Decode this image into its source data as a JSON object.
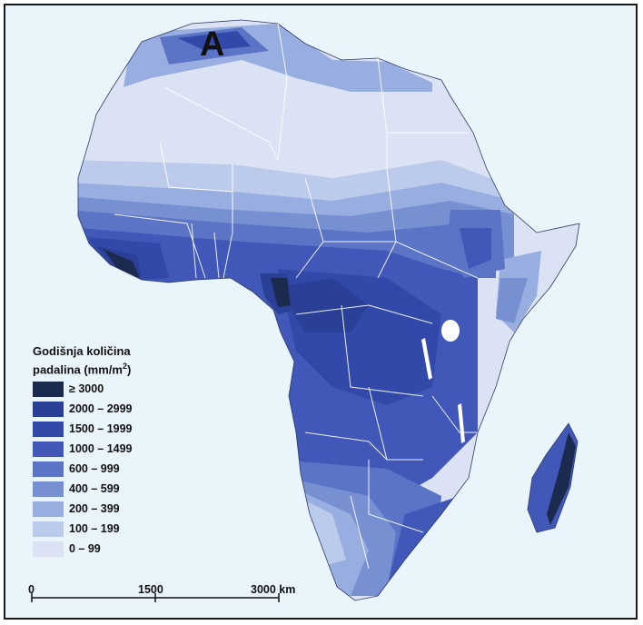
{
  "panel_letter": "A",
  "legend": {
    "title_line1": "Godišnja količina",
    "title_line2_prefix": "padalina (mm/m",
    "title_line2_sup": "2",
    "title_line2_suffix": ")",
    "items": [
      {
        "label": "≥ 3000",
        "color": "#1b2a4e"
      },
      {
        "label": "2000 – 2999",
        "color": "#2a3f96"
      },
      {
        "label": "1500 – 1999",
        "color": "#3249aa"
      },
      {
        "label": "1000 – 1499",
        "color": "#4158b8"
      },
      {
        "label": "600 – 999",
        "color": "#5b74c6"
      },
      {
        "label": "400 – 599",
        "color": "#7790d2"
      },
      {
        "label": "200 – 399",
        "color": "#98aee0"
      },
      {
        "label": "100 – 199",
        "color": "#bccbec"
      },
      {
        "label": "0 – 99",
        "color": "#dbe2f3"
      }
    ]
  },
  "scale_bar": {
    "labels": [
      "0",
      "1500",
      "3000 km"
    ]
  },
  "colors": {
    "ocean": "#e9f4fb",
    "border": "#ffffff"
  }
}
